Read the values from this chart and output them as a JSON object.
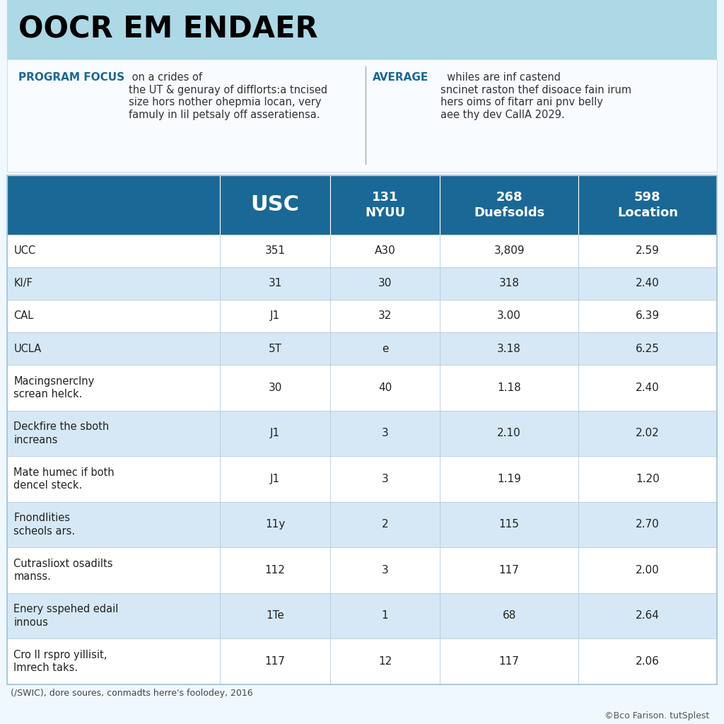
{
  "title": "OOCR EM ENDAER",
  "subtitle_left_bold": "PROGRAM FOCUS",
  "subtitle_left_text": " on a crides of\nthe UT & genuray of difflorts:a tncised\nsize hors nother ohepmia locan, very\nfamuly in lil petsaly off asseratiensa.",
  "subtitle_right_bold": "AVERAGE",
  "subtitle_right_text": "  whiles are inf castend\nsncinet raston thef disoace fain irum\nhers oims of fitarr ani pnv belly\naee thy dev CallA 2029.",
  "headers": [
    "",
    "USC",
    "131\nNYUU",
    "268\nDuefsolds",
    "598\nLocation"
  ],
  "rows": [
    [
      "UCC",
      "351",
      "A30",
      "3,809",
      "2.59"
    ],
    [
      "KI/F",
      "31",
      "30",
      "318",
      "2.40"
    ],
    [
      "CAL",
      "J1",
      "32",
      "3.00",
      "6.39"
    ],
    [
      "UCLA",
      "5T",
      "e",
      "3.18",
      "6.25"
    ],
    [
      "Macingsnerclny\nscrean helck.",
      "30",
      "40",
      "1.18",
      "2.40"
    ],
    [
      "Deckfire the sboth\nincreans",
      "J1",
      "3",
      "2.10",
      "2.02"
    ],
    [
      "Mate humec if both\ndencel steck.",
      "J1",
      "3",
      "1.19",
      "1.20"
    ],
    [
      "Fnondlities\nscheols ars.",
      "11y",
      "2",
      "115",
      "2.70"
    ],
    [
      "Cutraslioxt osadilts\nmanss.",
      "112",
      "3",
      "117",
      "2.00"
    ],
    [
      "Enery sspehed edail\ninnous",
      "1Te",
      "1",
      "68",
      "2.64"
    ],
    [
      "Cro II rspro yillisit,\nImrech taks.",
      "117",
      "12",
      "117",
      "2.06"
    ]
  ],
  "footer": "(/SWIC), dore soures, conmadts herre's foolodey, 2016",
  "credit": "©Bco Farison. tutSplest",
  "header_bg": "#1a6896",
  "header_text_color": "#ffffff",
  "row_alt_color": "#d6e8f5",
  "row_main_color": "#ffffff",
  "title_bg": "#add8e6",
  "border_color": "#a0c4d8",
  "title_color": "#000000",
  "focus_color": "#1a6896",
  "avg_color": "#1a6896"
}
